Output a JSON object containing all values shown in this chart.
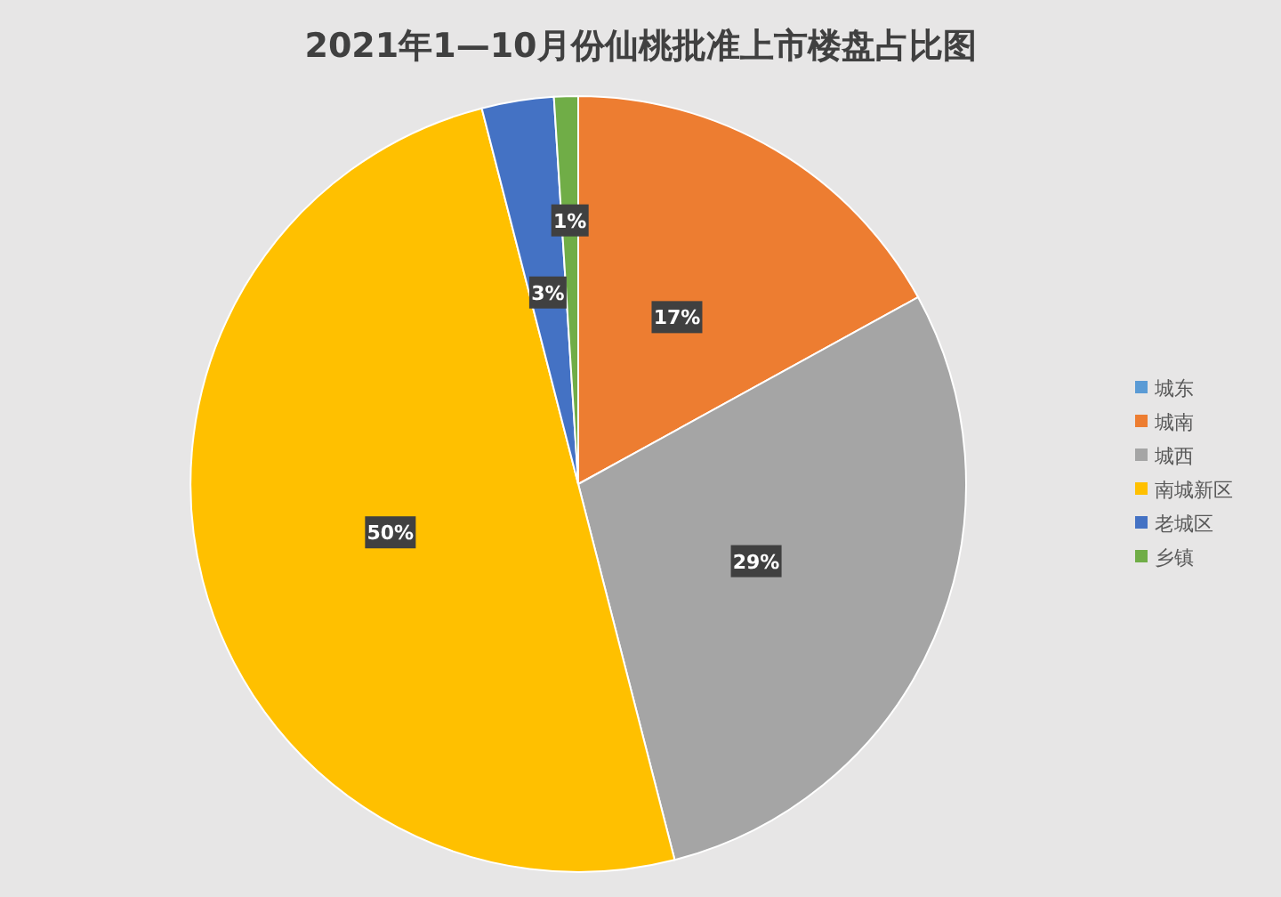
{
  "chart_data": {
    "type": "pie",
    "title": "2021年1—10月份仙桃批准上市楼盘占比图",
    "categories": [
      "城东",
      "城南",
      "城西",
      "南城新区",
      "老城区",
      "乡镇"
    ],
    "values": [
      0,
      17,
      29,
      50,
      3,
      1
    ],
    "colors": [
      "#5b9bd5",
      "#ed7d31",
      "#a5a5a5",
      "#ffc000",
      "#4472c4",
      "#70ad47"
    ],
    "value_labels": [
      null,
      "17%",
      "29%",
      "50%",
      "3%",
      "1%"
    ],
    "legend": "right"
  }
}
